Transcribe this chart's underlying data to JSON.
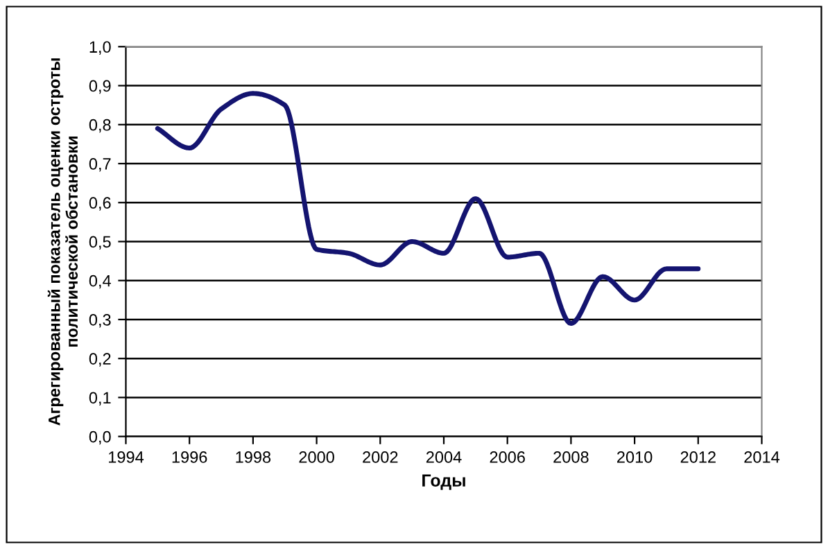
{
  "chart_data": {
    "type": "line",
    "xlabel": "Годы",
    "ylabel": "Агрегированный показатель оценки остроты политической обстановки",
    "x": [
      1995,
      1996,
      1997,
      1998,
      1999,
      2000,
      2001,
      2002,
      2003,
      2004,
      2005,
      2006,
      2007,
      2008,
      2009,
      2010,
      2011,
      2012
    ],
    "series": [
      {
        "color": "#141470",
        "values": [
          0.79,
          0.74,
          0.84,
          0.88,
          0.85,
          0.48,
          0.47,
          0.44,
          0.5,
          0.47,
          0.61,
          0.46,
          0.47,
          0.29,
          0.41,
          0.35,
          0.43,
          0.43
        ]
      }
    ],
    "xlim": [
      1994,
      2014
    ],
    "xticks": [
      1994,
      1996,
      1998,
      2000,
      2002,
      2004,
      2006,
      2008,
      2010,
      2012,
      2014
    ],
    "ylim": [
      0,
      1
    ],
    "yticks": [
      {
        "value": 0,
        "label": "0,0"
      },
      {
        "value": 0.1,
        "label": "0,1"
      },
      {
        "value": 0.2,
        "label": "0,2"
      },
      {
        "value": 0.3,
        "label": "0,3"
      },
      {
        "value": 0.4,
        "label": "0,4"
      },
      {
        "value": 0.5,
        "label": "0,5"
      },
      {
        "value": 0.6,
        "label": "0,6"
      },
      {
        "value": 0.7,
        "label": "0,7"
      },
      {
        "value": 0.8,
        "label": "0,8"
      },
      {
        "value": 0.9,
        "label": "0,9"
      },
      {
        "value": 1,
        "label": "1,0"
      }
    ],
    "grid": "y",
    "legend": false,
    "marker": "none",
    "line_style": "solid"
  }
}
